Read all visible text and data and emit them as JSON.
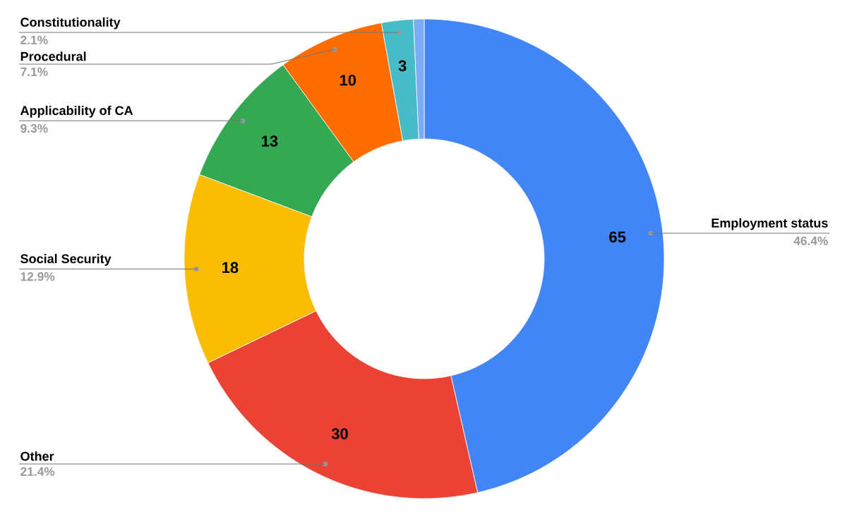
{
  "chart_data": {
    "type": "donut",
    "categories": [
      "Employment status",
      "Other",
      "Social Security",
      "Applicability of CA",
      "Procedural",
      "Constitutionality",
      null
    ],
    "values": [
      65,
      30,
      18,
      13,
      10,
      3,
      1
    ],
    "colors": [
      "#4285f4",
      "#ea4335",
      "#fbbc04",
      "#34a853",
      "#ff6d01",
      "#46bdc6",
      "#7baaf7"
    ],
    "value_labels": [
      "65",
      "30",
      "18",
      "13",
      "10",
      "3",
      null
    ],
    "annotations": [
      "46.4%",
      "21.4%",
      "12.9%",
      "9.3%",
      "7.1%",
      "2.1%"
    ]
  }
}
